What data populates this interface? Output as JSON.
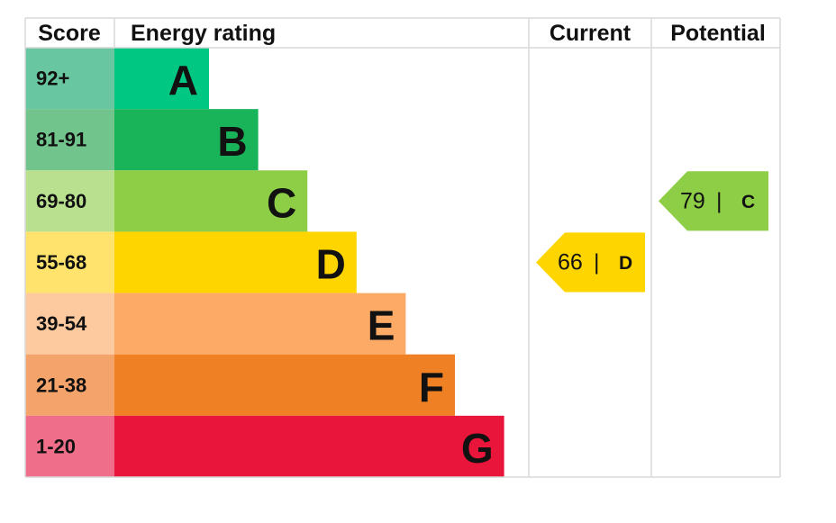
{
  "headers": {
    "score": "Score",
    "rating": "Energy rating",
    "current": "Current",
    "potential": "Potential"
  },
  "rows": [
    {
      "score": "92+",
      "band": "A",
      "color": "#00c781",
      "score_color": "#68c7a0"
    },
    {
      "score": "81-91",
      "band": "B",
      "color": "#19b459",
      "score_color": "#72c48d"
    },
    {
      "score": "69-80",
      "band": "C",
      "color": "#8dce46",
      "score_color": "#b9e08f"
    },
    {
      "score": "55-68",
      "band": "D",
      "color": "#ffd500",
      "score_color": "#ffe36c"
    },
    {
      "score": "39-54",
      "band": "E",
      "color": "#fcaa65",
      "score_color": "#fdcaa0"
    },
    {
      "score": "21-38",
      "band": "F",
      "color": "#ef8023",
      "score_color": "#f4a36a"
    },
    {
      "score": "1-20",
      "band": "G",
      "color": "#e9153b",
      "score_color": "#ef6f8a"
    }
  ],
  "current": {
    "value": 66,
    "separator": "|",
    "band": "D",
    "row": 3,
    "color": "#ffd500"
  },
  "potential": {
    "value": 79,
    "separator": "|",
    "band": "C",
    "row": 2,
    "color": "#8dce46"
  }
}
